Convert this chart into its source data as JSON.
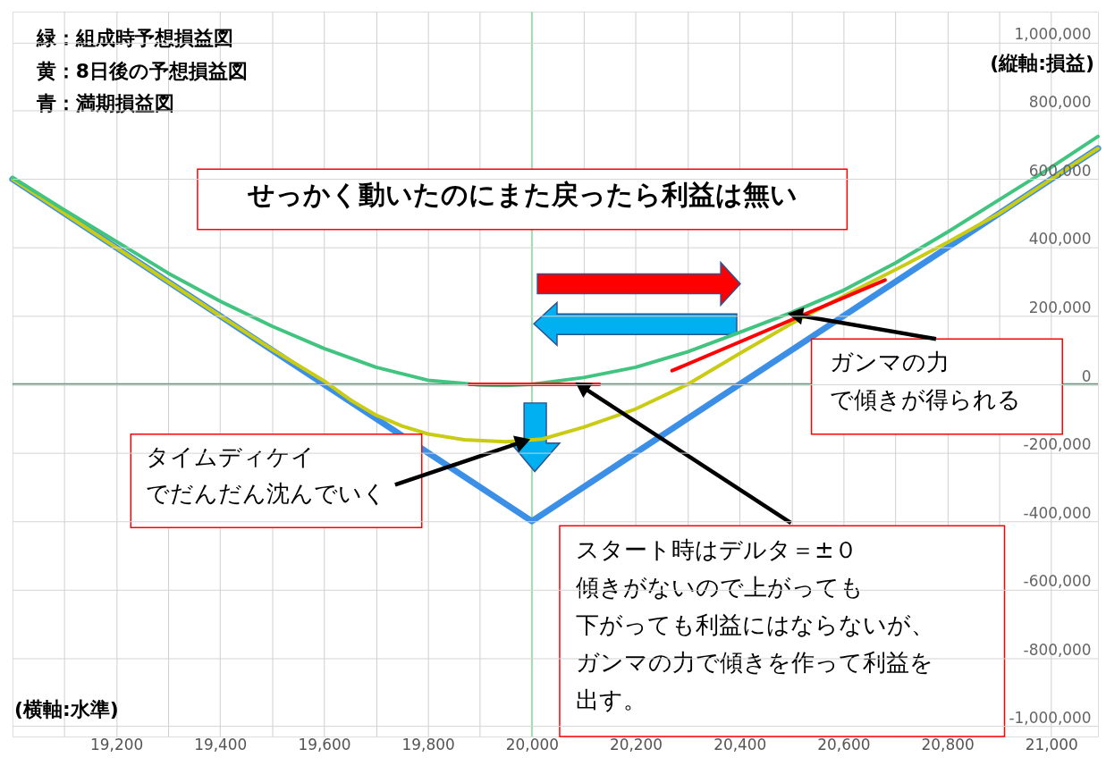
{
  "chart_data": {
    "type": "line",
    "xlabel": "(横軸:水準)",
    "ylabel": "(縦軸:損益)",
    "xlim": [
      19000,
      21090
    ],
    "ylim": [
      -1030000,
      1090000
    ],
    "xticks": [
      {
        "value": 19100,
        "label": null
      },
      {
        "value": 19200,
        "label": "19,200"
      },
      {
        "value": 19300,
        "label": null
      },
      {
        "value": 19400,
        "label": "19,400"
      },
      {
        "value": 19500,
        "label": null
      },
      {
        "value": 19600,
        "label": "19,600"
      },
      {
        "value": 19700,
        "label": null
      },
      {
        "value": 19800,
        "label": "19,800"
      },
      {
        "value": 19900,
        "label": null
      },
      {
        "value": 20000,
        "label": "20,000"
      },
      {
        "value": 20100,
        "label": null
      },
      {
        "value": 20200,
        "label": "20,200"
      },
      {
        "value": 20300,
        "label": null
      },
      {
        "value": 20400,
        "label": "20,400"
      },
      {
        "value": 20500,
        "label": null
      },
      {
        "value": 20600,
        "label": "20,600"
      },
      {
        "value": 20700,
        "label": null
      },
      {
        "value": 20800,
        "label": "20,800"
      },
      {
        "value": 20900,
        "label": null
      },
      {
        "value": 21000,
        "label": "21,000"
      }
    ],
    "yticks": [
      {
        "value": -1000000,
        "label": "-1,000,000"
      },
      {
        "value": -800000,
        "label": "-800,000"
      },
      {
        "value": -600000,
        "label": "-600,000"
      },
      {
        "value": -400000,
        "label": "-400,000"
      },
      {
        "value": -200000,
        "label": "-200,000"
      },
      0,
      {
        "value": 200000,
        "label": "200,000"
      },
      {
        "value": 400000,
        "label": "400,000"
      },
      {
        "value": 600000,
        "label": "600,000"
      },
      {
        "value": 800000,
        "label": "800,000"
      },
      {
        "value": 1000000,
        "label": "1,000,000"
      }
    ],
    "grid": true,
    "ref_lines": [
      {
        "axis": "x",
        "value": 20000,
        "color": "#a3dcb2"
      },
      {
        "axis": "y",
        "value": 0,
        "color": "#4f9a7a"
      }
    ],
    "series": [
      {
        "color": "#3b8fe6",
        "x": [
          19000,
          20000,
          21090
        ],
        "values": [
          600000,
          -400000,
          690000
        ]
      },
      {
        "color": "#c9cc12",
        "x": [
          19000,
          19200,
          19400,
          19500,
          19600,
          19650,
          19700,
          19750,
          19800,
          19870,
          19950,
          20020,
          20100,
          20200,
          20300,
          20400,
          20500,
          20600,
          20700,
          20800,
          20900,
          21000,
          21090
        ],
        "values": [
          600000,
          400000,
          200000,
          102000,
          10000,
          -45000,
          -90000,
          -122000,
          -145000,
          -162000,
          -168000,
          -160000,
          -125000,
          -72000,
          0,
          90000,
          178000,
          258000,
          335000,
          415000,
          500000,
          600000,
          690000
        ]
      },
      {
        "color": "#41c47f",
        "x": [
          19000,
          19100,
          19200,
          19300,
          19400,
          19500,
          19600,
          19700,
          19800,
          19900,
          19950,
          20000,
          20100,
          20200,
          20300,
          20400,
          20500,
          20600,
          20700,
          20800,
          20900,
          21000,
          21090
        ],
        "values": [
          605000,
          510000,
          418000,
          325000,
          243000,
          170000,
          105000,
          50000,
          12000,
          -2000,
          -3000,
          0,
          20000,
          50000,
          95000,
          152000,
          210000,
          275000,
          355000,
          445000,
          540000,
          635000,
          725000
        ]
      },
      {
        "color": "#ff0000",
        "x": [
          19880,
          20130
        ],
        "values": [
          0,
          0
        ]
      },
      {
        "color": "#ff0000",
        "x": [
          20270,
          20680
        ],
        "values": [
          40000,
          305000
        ]
      }
    ],
    "annotations": [
      "緑：組成時予想損益図",
      "黄：8日後の予想損益図",
      "青：満期損益図",
      "せっかく動いたのにまた戻ったら利益は無い",
      {
        "text": "ガンマの力で傾きが得られる",
        "x": 20500,
        "y": 205000
      },
      {
        "text": "タイムディケイでだんだん沈んでいく",
        "x": 19990,
        "y": -164000
      },
      {
        "text": "スタート時はデルタ＝±０傾きがないので上がっても下がっても利益にはならないが、ガンマの力で傾きを作って利益を出す。",
        "x": 20090,
        "y": 0
      }
    ]
  }
}
